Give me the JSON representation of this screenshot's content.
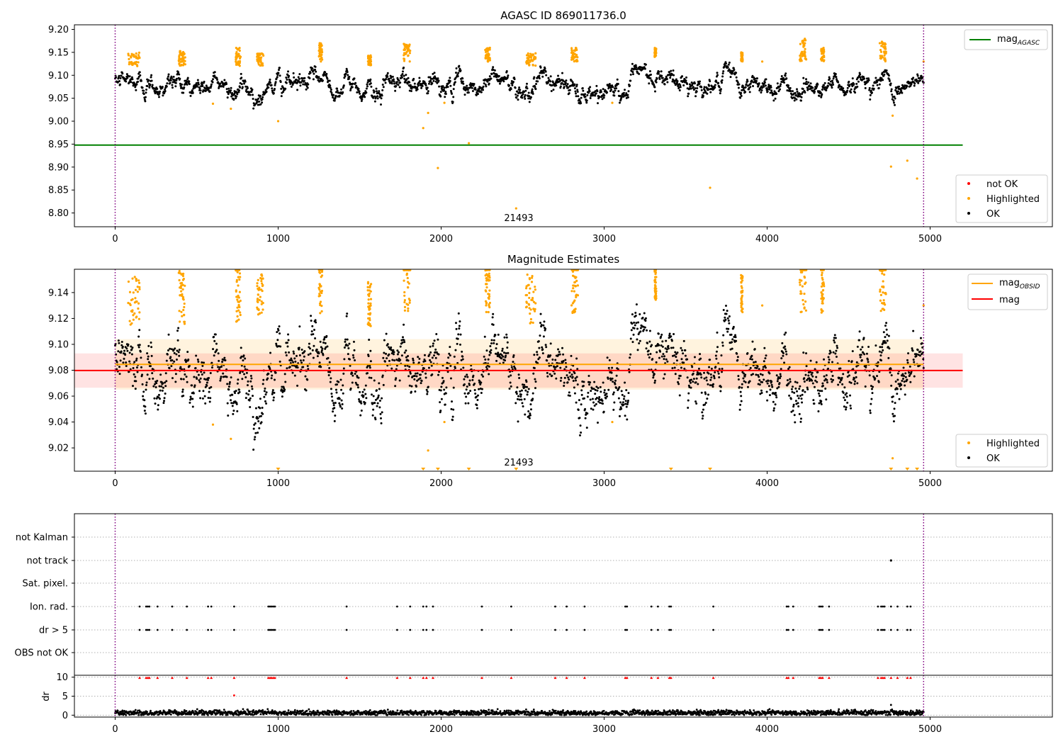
{
  "chart_data": [
    {
      "type": "scatter",
      "title": "AGASC ID 869011736.0",
      "xlim": [
        -250,
        5750
      ],
      "ylim": [
        8.77,
        9.21
      ],
      "x_ticks": [
        0,
        1000,
        2000,
        3000,
        4000,
        5000
      ],
      "y_ticks": [
        8.8,
        8.85,
        8.9,
        8.95,
        9.0,
        9.05,
        9.1,
        9.15,
        9.2
      ],
      "y_tick_labels": [
        "8.80",
        "8.85",
        "8.90",
        "8.95",
        "9.00",
        "9.05",
        "9.10",
        "9.15",
        "9.20"
      ],
      "obsid_label": "21493",
      "obsid_label_x": 2460,
      "vlines_x": [
        0,
        4960
      ],
      "mag_agasc": 8.948,
      "mag_agasc_range": [
        -250,
        5200
      ],
      "legend_line_label": "mag",
      "legend_line_sub": "AGASC",
      "legend_scatter": [
        "not OK",
        "Highlighted",
        "OK"
      ],
      "colors": {
        "ok": "#000000",
        "highlighted": "#ffa500",
        "not_ok": "#ff0000",
        "agasc": "#008000",
        "vline": "#800080"
      },
      "baseline": 9.079,
      "highlight_clusters": [
        {
          "x": [
            80,
            150
          ],
          "y": [
            9.12,
            9.15
          ]
        },
        {
          "x": [
            390,
            430
          ],
          "y": [
            9.12,
            9.155
          ]
        },
        {
          "x": [
            740,
            770
          ],
          "y": [
            9.12,
            9.16
          ]
        },
        {
          "x": [
            870,
            910
          ],
          "y": [
            9.12,
            9.15
          ]
        },
        {
          "x": [
            1250,
            1270
          ],
          "y": [
            9.13,
            9.17
          ]
        },
        {
          "x": [
            1550,
            1570
          ],
          "y": [
            9.12,
            9.145
          ]
        },
        {
          "x": [
            1770,
            1810
          ],
          "y": [
            9.13,
            9.17
          ]
        },
        {
          "x": [
            2270,
            2300
          ],
          "y": [
            9.13,
            9.16
          ]
        },
        {
          "x": [
            2520,
            2580
          ],
          "y": [
            9.12,
            9.15
          ]
        },
        {
          "x": [
            2800,
            2840
          ],
          "y": [
            9.13,
            9.16
          ]
        },
        {
          "x": [
            3310,
            3320
          ],
          "y": [
            9.14,
            9.16
          ]
        },
        {
          "x": [
            3840,
            3850
          ],
          "y": [
            9.13,
            9.15
          ]
        },
        {
          "x": [
            4200,
            4240
          ],
          "y": [
            9.13,
            9.18
          ]
        },
        {
          "x": [
            4330,
            4350
          ],
          "y": [
            9.13,
            9.16
          ]
        },
        {
          "x": [
            4690,
            4730
          ],
          "y": [
            9.13,
            9.175
          ]
        }
      ],
      "highlight_outliers": [
        [
          1000,
          9.0
        ],
        [
          1890,
          8.985
        ],
        [
          1920,
          9.018
        ],
        [
          1980,
          8.898
        ],
        [
          2170,
          8.952
        ],
        [
          2460,
          8.81
        ],
        [
          3650,
          8.855
        ],
        [
          4760,
          8.901
        ],
        [
          4770,
          9.012
        ],
        [
          4860,
          8.914
        ],
        [
          4920,
          8.875
        ],
        [
          4960,
          9.13
        ],
        [
          600,
          9.038
        ],
        [
          710,
          9.027
        ],
        [
          3050,
          9.04
        ],
        [
          2020,
          9.04
        ],
        [
          3970,
          9.13
        ]
      ]
    },
    {
      "type": "scatter",
      "title": "Magnitude Estimates",
      "xlim": [
        -250,
        5750
      ],
      "ylim": [
        9.002,
        9.158
      ],
      "x_ticks": [
        0,
        1000,
        2000,
        3000,
        4000,
        5000
      ],
      "y_ticks": [
        9.02,
        9.04,
        9.06,
        9.08,
        9.1,
        9.12,
        9.14
      ],
      "y_tick_labels": [
        "9.02",
        "9.04",
        "9.06",
        "9.08",
        "9.10",
        "9.12",
        "9.14"
      ],
      "obsid_label": "21493",
      "obsid_label_x": 2460,
      "vlines_x": [
        0,
        4960
      ],
      "mag_obsid": 9.0845,
      "mag_obsid_band": [
        9.065,
        9.104
      ],
      "mag_obsid_range": [
        0,
        4960
      ],
      "mag": 9.0798,
      "mag_band": [
        9.0665,
        9.093
      ],
      "mag_range": [
        -250,
        5200
      ],
      "legend_lines": [
        {
          "label": "mag",
          "sub": "OBSID",
          "color": "#ffa500"
        },
        {
          "label": "mag",
          "sub": "",
          "color": "#ff0000"
        }
      ],
      "legend_scatter": [
        "Highlighted",
        "OK"
      ],
      "lower_markers_x": [
        1000,
        1890,
        1980,
        2170,
        2460,
        3410,
        3650,
        4760,
        4860,
        4920
      ]
    },
    {
      "type": "scatter",
      "flag_labels": [
        "not Kalman",
        "not track",
        "Sat. pixel.",
        "Ion. rad.",
        "dr > 5",
        "OBS not OK"
      ],
      "ion_rad_x": [
        150,
        190,
        200,
        210,
        260,
        350,
        440,
        570,
        590,
        730,
        940,
        950,
        960,
        970,
        980,
        1420,
        1730,
        1810,
        1890,
        1910,
        1950,
        2250,
        2430,
        2700,
        2770,
        2880,
        3130,
        3140,
        3290,
        3330,
        3400,
        3410,
        3670,
        4120,
        4130,
        4160,
        4320,
        4330,
        4340,
        4380,
        4680,
        4700,
        4710,
        4720,
        4760,
        4800,
        4860,
        4880
      ],
      "not_track_x": [
        4760
      ],
      "dr_ylim": [
        -0.5,
        10.5
      ],
      "dr_ylabel": "dr",
      "dr_y_ticks": [
        0,
        5,
        10
      ],
      "dr_y_tick_labels": [
        "0",
        "5",
        "10"
      ],
      "dr_x_ticks": [
        0,
        1000,
        2000,
        3000,
        4000,
        5000
      ],
      "dr_outliers": [
        [
          730,
          5.2
        ],
        [
          4760,
          2.7
        ],
        [
          3580,
          1.0
        ]
      ]
    }
  ]
}
